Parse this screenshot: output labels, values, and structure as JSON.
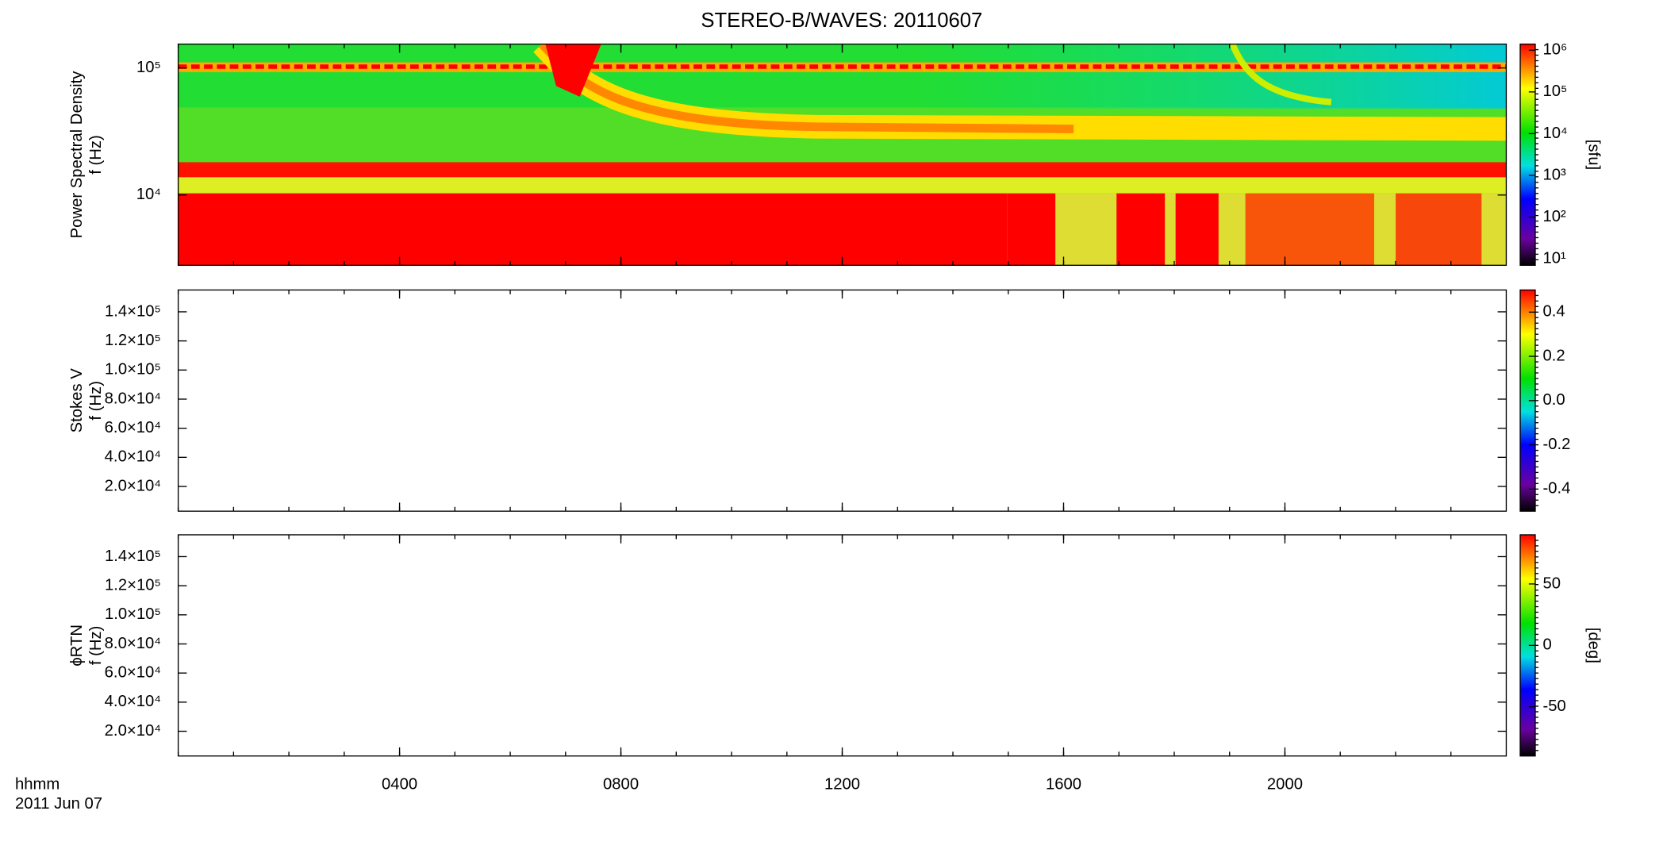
{
  "chart_data": [
    {
      "type": "spectrogram",
      "title": "STEREO-B/WAVES: 20110607",
      "ylabel": [
        "Power Spectral Density",
        "f (Hz)"
      ],
      "ylog": true,
      "ylim": [
        2800,
        154000
      ],
      "yticks": [
        {
          "value": 10000,
          "label": "10⁴"
        },
        {
          "value": 100000,
          "label": "10⁵"
        }
      ],
      "colorbar": {
        "log": true,
        "clim": [
          7,
          1400000
        ],
        "label": "[sfu]",
        "cticks": [
          {
            "value": 10,
            "label": "10¹"
          },
          {
            "value": 100,
            "label": "10²"
          },
          {
            "value": 1000,
            "label": "10³"
          },
          {
            "value": 10000,
            "label": "10⁴"
          },
          {
            "value": 100000,
            "label": "10⁵"
          },
          {
            "value": 1000000,
            "label": "10⁶"
          }
        ]
      }
    },
    {
      "type": "spectrogram",
      "ylabel": [
        "Stokes V",
        "f (Hz)"
      ],
      "ylog": false,
      "ylim": [
        3000,
        155000
      ],
      "yticks": [
        {
          "value": 20000,
          "label": "2.0×10⁴"
        },
        {
          "value": 40000,
          "label": "4.0×10⁴"
        },
        {
          "value": 60000,
          "label": "6.0×10⁴"
        },
        {
          "value": 80000,
          "label": "8.0×10⁴"
        },
        {
          "value": 100000,
          "label": "1.0×10⁵"
        },
        {
          "value": 120000,
          "label": "1.2×10⁵"
        },
        {
          "value": 140000,
          "label": "1.4×10⁵"
        }
      ],
      "colorbar": {
        "log": false,
        "clim": [
          -0.5,
          0.5
        ],
        "cticks": [
          -0.4,
          -0.2,
          {
            "value": 0,
            "label": "0.0"
          },
          0.2,
          0.4
        ]
      }
    },
    {
      "type": "spectrogram",
      "ylabel": [
        "ϕRTN",
        "f (Hz)"
      ],
      "ylog": false,
      "ylim": [
        3000,
        155000
      ],
      "yticks": [
        {
          "value": 20000,
          "label": "2.0×10⁴"
        },
        {
          "value": 40000,
          "label": "4.0×10⁴"
        },
        {
          "value": 60000,
          "label": "6.0×10⁴"
        },
        {
          "value": 80000,
          "label": "8.0×10⁴"
        },
        {
          "value": 100000,
          "label": "1.0×10⁵"
        },
        {
          "value": 120000,
          "label": "1.2×10⁵"
        },
        {
          "value": 140000,
          "label": "1.4×10⁵"
        }
      ],
      "colorbar": {
        "log": false,
        "clim": [
          -90,
          90
        ],
        "label": "[deg]",
        "cticks": [
          -50,
          0,
          50
        ]
      },
      "xlabel": [
        "hhmm",
        "2011 Jun 07"
      ],
      "xlim": [
        0,
        24
      ],
      "xticks": [
        {
          "value": 4,
          "label": "0400"
        },
        {
          "value": 8,
          "label": "0800"
        },
        {
          "value": 12,
          "label": "1200"
        },
        {
          "value": 16,
          "label": "1600"
        },
        {
          "value": 20,
          "label": "2000"
        }
      ]
    }
  ]
}
